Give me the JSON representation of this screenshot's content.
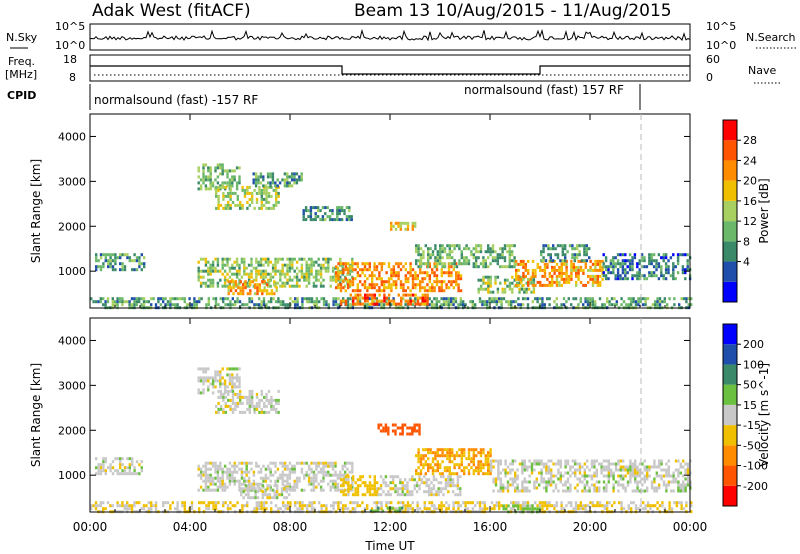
{
  "header": {
    "station": "Adak West (fitACF)",
    "beam_info": "Beam 13  10/Aug/2015 - 11/Aug/2015"
  },
  "panels": {
    "nsky": {
      "label": "N.Sky",
      "left_ticks": [
        "10^5",
        "10^0"
      ],
      "right_ticks": [
        "10^5",
        "10^0"
      ],
      "right_label": "N.Search"
    },
    "freq": {
      "label_line1": "Freq.",
      "label_line2": "[MHz]",
      "left_ticks": [
        "18",
        "8"
      ],
      "right_ticks": [
        "60",
        "0"
      ],
      "right_label": "Nave"
    },
    "cpid": {
      "label": "CPID",
      "mode_1": "normalsound (fast) -157 RF",
      "mode_2": "normalsound (fast) 157 RF"
    }
  },
  "time_axis": {
    "ticks": [
      "00:00",
      "04:00",
      "08:00",
      "12:00",
      "16:00",
      "20:00",
      "00:00"
    ],
    "xlabel": "Time UT"
  },
  "chart_data": [
    {
      "type": "heatmap",
      "name": "power",
      "ylabel": "Slant Range [km]",
      "yticks": [
        1000,
        2000,
        3000,
        4000
      ],
      "ylim": [
        180,
        4500
      ],
      "xlim": [
        0,
        24
      ],
      "colorbar": {
        "label": "Power [dB]",
        "ticks": [
          "28",
          "24",
          "20",
          "16",
          "12",
          "8",
          "4"
        ],
        "colors": [
          "#0000ff",
          "#1f4faa",
          "#3a8a6a",
          "#6cb86a",
          "#a8d060",
          "#f0c000",
          "#ff8c00",
          "#ff5500",
          "#ff0000"
        ]
      },
      "echo_regions": [
        {
          "t0": 0.0,
          "t1": 24.0,
          "r0": 200,
          "r1": 420,
          "v": 12
        },
        {
          "t0": 0.2,
          "t1": 2.2,
          "r0": 1050,
          "r1": 1400,
          "v": 11
        },
        {
          "t0": 4.3,
          "t1": 6.0,
          "r0": 2800,
          "r1": 3400,
          "v": 14
        },
        {
          "t0": 5.0,
          "t1": 7.5,
          "r0": 2400,
          "r1": 2900,
          "v": 17
        },
        {
          "t0": 6.5,
          "t1": 8.5,
          "r0": 2900,
          "r1": 3200,
          "v": 12
        },
        {
          "t0": 4.3,
          "t1": 10.5,
          "r0": 650,
          "r1": 1300,
          "v": 16
        },
        {
          "t0": 5.5,
          "t1": 7.5,
          "r0": 500,
          "r1": 800,
          "v": 24
        },
        {
          "t0": 8.5,
          "t1": 10.5,
          "r0": 2150,
          "r1": 2450,
          "v": 11
        },
        {
          "t0": 9.8,
          "t1": 14.8,
          "r0": 550,
          "r1": 1200,
          "v": 26
        },
        {
          "t0": 10.0,
          "t1": 13.5,
          "r0": 250,
          "r1": 500,
          "v": 28
        },
        {
          "t0": 12.0,
          "t1": 13.0,
          "r0": 1950,
          "r1": 2100,
          "v": 22
        },
        {
          "t0": 13.0,
          "t1": 17.0,
          "r0": 1100,
          "r1": 1600,
          "v": 14
        },
        {
          "t0": 15.5,
          "t1": 17.8,
          "r0": 500,
          "r1": 900,
          "v": 16
        },
        {
          "t0": 17.0,
          "t1": 20.5,
          "r0": 700,
          "r1": 1250,
          "v": 25
        },
        {
          "t0": 18.0,
          "t1": 20.0,
          "r0": 1250,
          "r1": 1600,
          "v": 12
        },
        {
          "t0": 20.5,
          "t1": 24.0,
          "r0": 850,
          "r1": 1400,
          "v": 9
        }
      ]
    },
    {
      "type": "heatmap",
      "name": "velocity",
      "ylabel": "Slant Range [km]",
      "yticks": [
        1000,
        2000,
        3000,
        4000
      ],
      "ylim": [
        180,
        4500
      ],
      "xlim": [
        0,
        24
      ],
      "colorbar": {
        "label": "Velocity [m s^-1]",
        "ticks": [
          "200",
          "100",
          "50",
          "15",
          "-15",
          "-50",
          "-100",
          "-200"
        ],
        "colors": [
          "#ff0000",
          "#ff5500",
          "#ff8c00",
          "#f0c000",
          "#c8c8c8",
          "#6cc040",
          "#3a8a6a",
          "#1f4faa",
          "#0000ff"
        ]
      },
      "echo_regions": [
        {
          "t0": 0.0,
          "t1": 24.0,
          "r0": 200,
          "r1": 420,
          "v": -15
        },
        {
          "t0": 0.2,
          "t1": 2.2,
          "r0": 1050,
          "r1": 1400,
          "v": 0
        },
        {
          "t0": 4.3,
          "t1": 6.0,
          "r0": 2800,
          "r1": 3400,
          "v": 0
        },
        {
          "t0": 5.0,
          "t1": 7.5,
          "r0": 2400,
          "r1": 2900,
          "v": 0
        },
        {
          "t0": 4.3,
          "t1": 10.5,
          "r0": 650,
          "r1": 1300,
          "v": 0
        },
        {
          "t0": 6.0,
          "t1": 8.0,
          "r0": 500,
          "r1": 800,
          "v": 0
        },
        {
          "t0": 10.0,
          "t1": 11.5,
          "r0": 550,
          "r1": 1000,
          "v": -30
        },
        {
          "t0": 11.5,
          "t1": 14.8,
          "r0": 550,
          "r1": 1000,
          "v": 0
        },
        {
          "t0": 11.0,
          "t1": 12.5,
          "r0": 200,
          "r1": 300,
          "v": 40
        },
        {
          "t0": 11.5,
          "t1": 13.2,
          "r0": 1900,
          "r1": 2150,
          "v": -150
        },
        {
          "t0": 13.0,
          "t1": 16.0,
          "r0": 1000,
          "r1": 1600,
          "v": -50
        },
        {
          "t0": 16.0,
          "t1": 24.0,
          "r0": 650,
          "r1": 1350,
          "v": 0
        },
        {
          "t0": 16.5,
          "t1": 18.0,
          "r0": 200,
          "r1": 350,
          "v": 30
        }
      ]
    }
  ]
}
